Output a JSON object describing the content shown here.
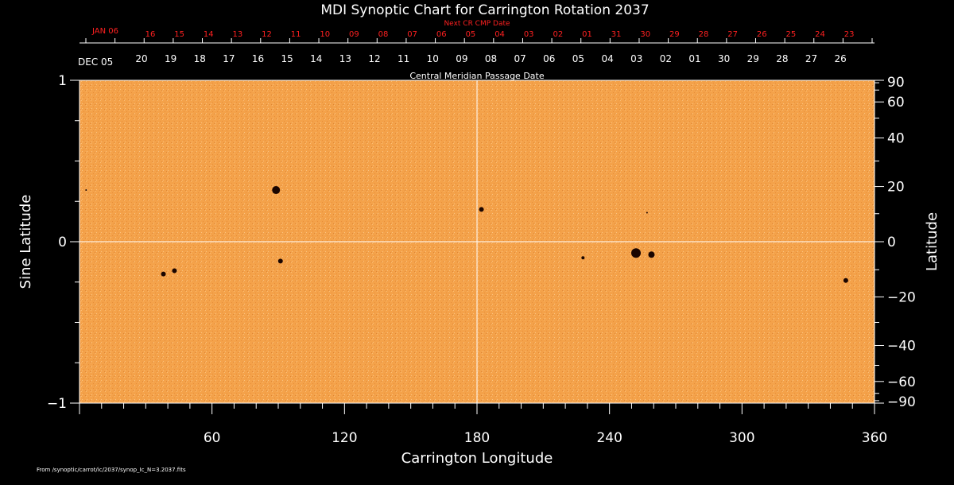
{
  "chart_data": {
    "type": "heatmap",
    "title": "MDI Synoptic Chart for Carrington Rotation 2037",
    "xlabel": "Carrington Longitude",
    "ylabel_left": "Sine Latitude",
    "ylabel_right": "Latitude",
    "xlim": [
      0,
      360
    ],
    "ylim": [
      -1,
      1
    ],
    "x_ticks": [
      60,
      120,
      180,
      240,
      300,
      360
    ],
    "x_tick_labels": [
      "60",
      "120",
      "180",
      "240",
      "300",
      "360"
    ],
    "y_left_ticks": [
      1,
      0,
      -1
    ],
    "y_left_tick_labels": [
      "1",
      "0",
      "−1"
    ],
    "y_right_ticks": [
      90,
      60,
      40,
      20,
      0,
      -20,
      -40,
      -60,
      -90
    ],
    "y_right_tick_labels": [
      "90",
      "60",
      "40",
      "20",
      "0",
      "−20",
      "−40",
      "−60",
      "−90"
    ],
    "center_lines": {
      "longitude": 180,
      "sine_latitude": 0
    },
    "background_color": "#f4a24a",
    "spot_color": "#1a0500",
    "top_axis": {
      "label": "Central Meridian Passage Date",
      "start_label": "DEC 05",
      "dates": [
        "20",
        "19",
        "18",
        "17",
        "16",
        "15",
        "14",
        "13",
        "12",
        "11",
        "10",
        "09",
        "08",
        "07",
        "06",
        "05",
        "04",
        "03",
        "02",
        "01",
        "30",
        "29",
        "28",
        "27",
        "26"
      ]
    },
    "next_axis": {
      "label": "Next CR CMP Date",
      "start_label": "JAN 06",
      "dates": [
        "16",
        "15",
        "14",
        "13",
        "12",
        "11",
        "10",
        "09",
        "08",
        "07",
        "06",
        "05",
        "04",
        "03",
        "02",
        "01",
        "31",
        "30",
        "29",
        "28",
        "27",
        "26",
        "25",
        "24",
        "23"
      ]
    },
    "spots": [
      {
        "lon": 89,
        "sinlat": 0.32,
        "size": 5
      },
      {
        "lon": 91,
        "sinlat": -0.12,
        "size": 3
      },
      {
        "lon": 43,
        "sinlat": -0.18,
        "size": 3
      },
      {
        "lon": 38,
        "sinlat": -0.2,
        "size": 3
      },
      {
        "lon": 182,
        "sinlat": 0.2,
        "size": 3
      },
      {
        "lon": 257,
        "sinlat": 0.18,
        "size": 1
      },
      {
        "lon": 252,
        "sinlat": -0.07,
        "size": 6
      },
      {
        "lon": 259,
        "sinlat": -0.08,
        "size": 4
      },
      {
        "lon": 228,
        "sinlat": -0.1,
        "size": 2
      },
      {
        "lon": 347,
        "sinlat": -0.24,
        "size": 3
      },
      {
        "lon": 3,
        "sinlat": 0.32,
        "size": 1
      }
    ]
  },
  "footer": {
    "source": "From /synoptic/carrot/ic/2037/synop_Ic_N=3.2037.fits"
  }
}
